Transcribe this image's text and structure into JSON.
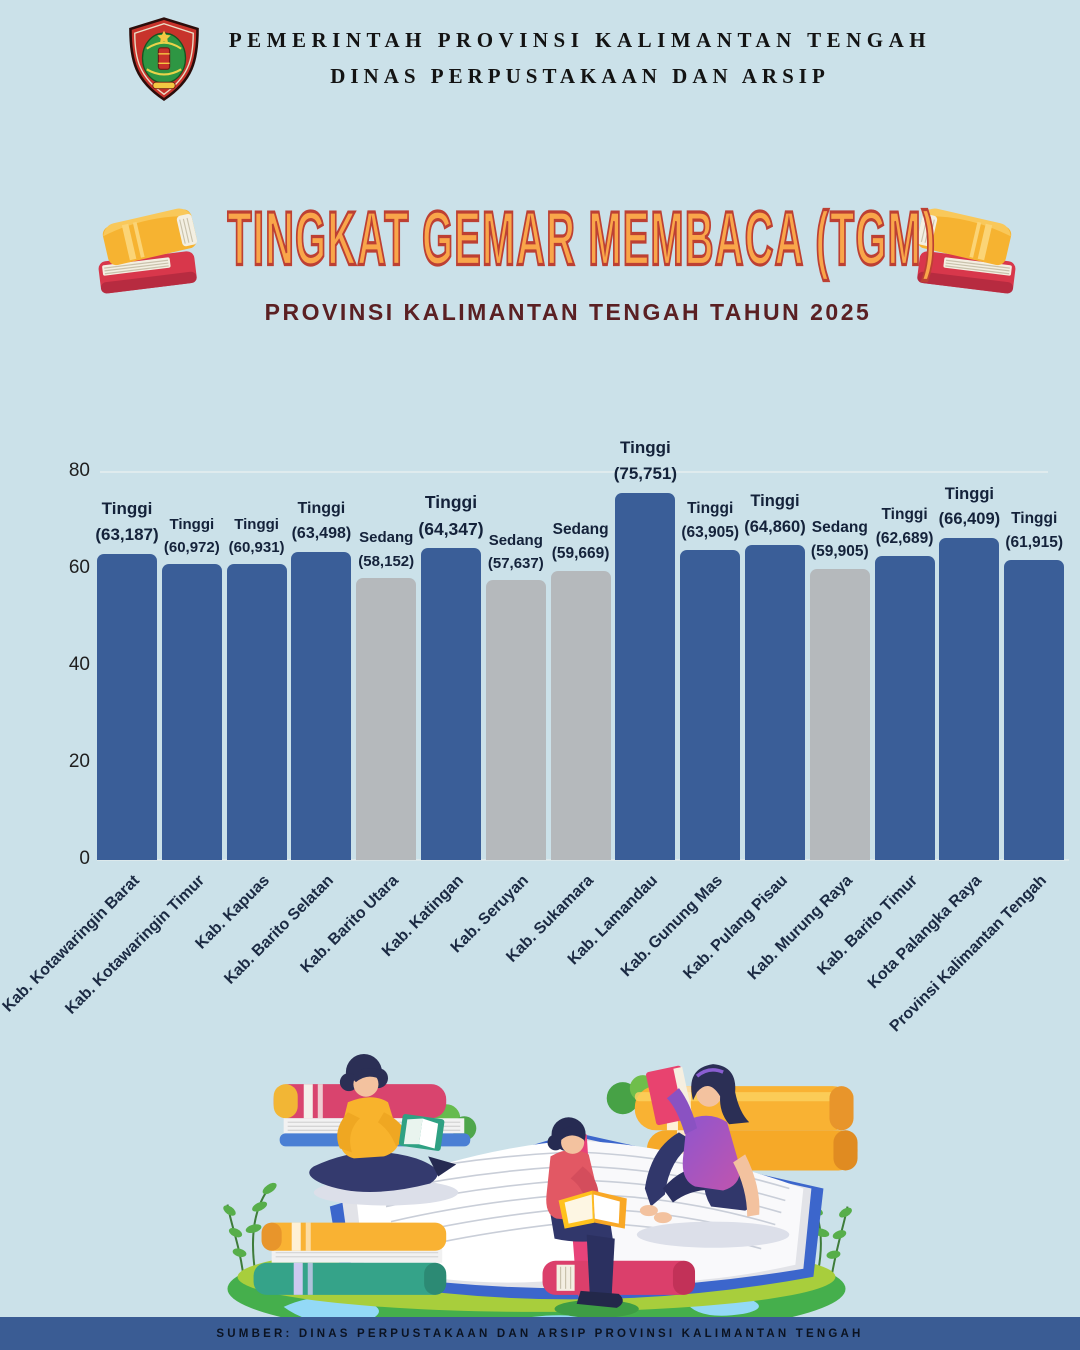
{
  "page_bg": "#CBE1E9",
  "header": {
    "line1": "PEMERINTAH PROVINSI KALIMANTAN TENGAH",
    "line2": "DINAS PERPUSTAKAAN DAN ARSIP",
    "logo": "kalimantan-tengah-provincial-emblem"
  },
  "title": {
    "main": "TINGKAT GEMAR MEMBACA (TGM)",
    "subtitle": "PROVINSI KALIMANTAN TENGAH TAHUN 2025",
    "title_fill": "#F9A64A",
    "title_outline": "#BD4033",
    "subtitle_color": "#5A2023",
    "left_icon": "books-stack-icon",
    "right_icon": "books-stack-icon"
  },
  "chart_data": {
    "type": "bar",
    "title": "Tingkat Gemar Membaca (TGM) Provinsi Kalimantan Tengah Tahun 2025",
    "categories": [
      "Kab. Kotawaringin Barat",
      "Kab. Kotawaringin Timur",
      "Kab. Kapuas",
      "Kab. Barito Selatan",
      "Kab. Barito Utara",
      "Kab. Katingan",
      "Kab. Seruyan",
      "Kab. Sukamara",
      "Kab. Lamandau",
      "Kab. Gunung Mas",
      "Kab. Pulang Pisau",
      "Kab. Murung Raya",
      "Kab. Barito Timur",
      "Kota Palangka Raya",
      "Provinsi Kalimantan Tengah"
    ],
    "values": [
      63.187,
      60.972,
      60.931,
      63.498,
      58.152,
      64.347,
      57.637,
      59.669,
      75.751,
      63.905,
      64.86,
      59.905,
      62.689,
      66.409,
      61.915
    ],
    "point_labels": [
      {
        "level": "Tinggi",
        "value_text": "(63,187)"
      },
      {
        "level": "Tinggi",
        "value_text": "(60,972)"
      },
      {
        "level": "Tinggi",
        "value_text": "(60,931)"
      },
      {
        "level": "Tinggi",
        "value_text": "(63,498)"
      },
      {
        "level": "Sedang",
        "value_text": "(58,152)"
      },
      {
        "level": "Tinggi",
        "value_text": "(64,347)"
      },
      {
        "level": "Sedang",
        "value_text": "(57,637)"
      },
      {
        "level": "Sedang",
        "value_text": "(59,669)"
      },
      {
        "level": "Tinggi",
        "value_text": "(75,751)"
      },
      {
        "level": "Tinggi",
        "value_text": "(63,905)"
      },
      {
        "level": "Tinggi",
        "value_text": "(64,860)"
      },
      {
        "level": "Sedang",
        "value_text": "(59,905)"
      },
      {
        "level": "Tinggi",
        "value_text": "(62,689)"
      },
      {
        "level": "Tinggi",
        "value_text": "(66,409)"
      },
      {
        "level": "Tinggi",
        "value_text": "(61,915)"
      }
    ],
    "xlabel": "",
    "ylabel": "",
    "ylim": [
      0,
      80
    ],
    "yticks": [
      0,
      20,
      40,
      60,
      80
    ],
    "grid": "faint horizontal line at 80 and baseline at 0",
    "legend_position": "none",
    "bar_colors": {
      "Tinggi": "#3A5E98",
      "Sedang": "#B5B9BC"
    },
    "label_text_color": "#14223A"
  },
  "footer": {
    "source": "SUMBER: DINAS PERPUSTAKAAN DAN ARSIP PROVINSI KALIMANTAN TENGAH",
    "bg": "#3A5C94"
  },
  "illustration": "people-reading-on-giant-books"
}
